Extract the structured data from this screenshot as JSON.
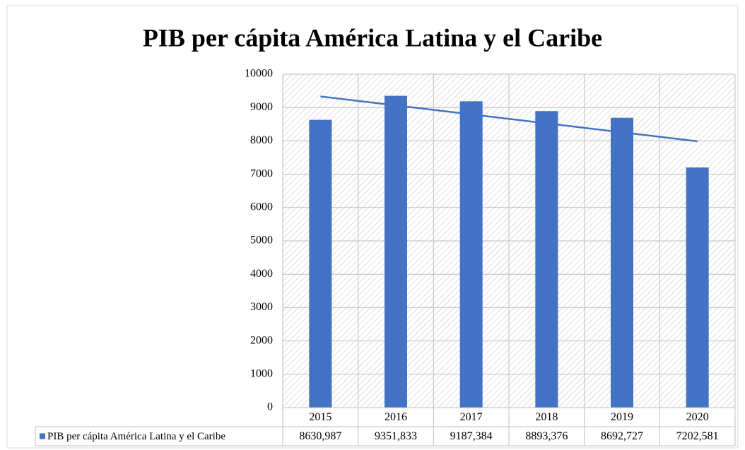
{
  "chart_data": {
    "type": "bar",
    "title": "PIB per cápita América Latina y el Caribe",
    "categories": [
      "2015",
      "2016",
      "2017",
      "2018",
      "2019",
      "2020"
    ],
    "series": [
      {
        "name": "PIB per cápita América Latina y el Caribe",
        "color": "#4472c4",
        "values": [
          8630.987,
          9351.833,
          9187.384,
          8893.376,
          8692.727,
          7202.581
        ],
        "value_labels": [
          "8630,987",
          "9351,833",
          "9187,384",
          "8893,376",
          "8692,727",
          "7202,581"
        ]
      }
    ],
    "ylim": [
      0,
      10000
    ],
    "yticks": [
      0,
      1000,
      2000,
      3000,
      4000,
      5000,
      6000,
      7000,
      8000,
      9000,
      10000
    ],
    "grid": true,
    "trendline": "linear",
    "data_table": true
  }
}
